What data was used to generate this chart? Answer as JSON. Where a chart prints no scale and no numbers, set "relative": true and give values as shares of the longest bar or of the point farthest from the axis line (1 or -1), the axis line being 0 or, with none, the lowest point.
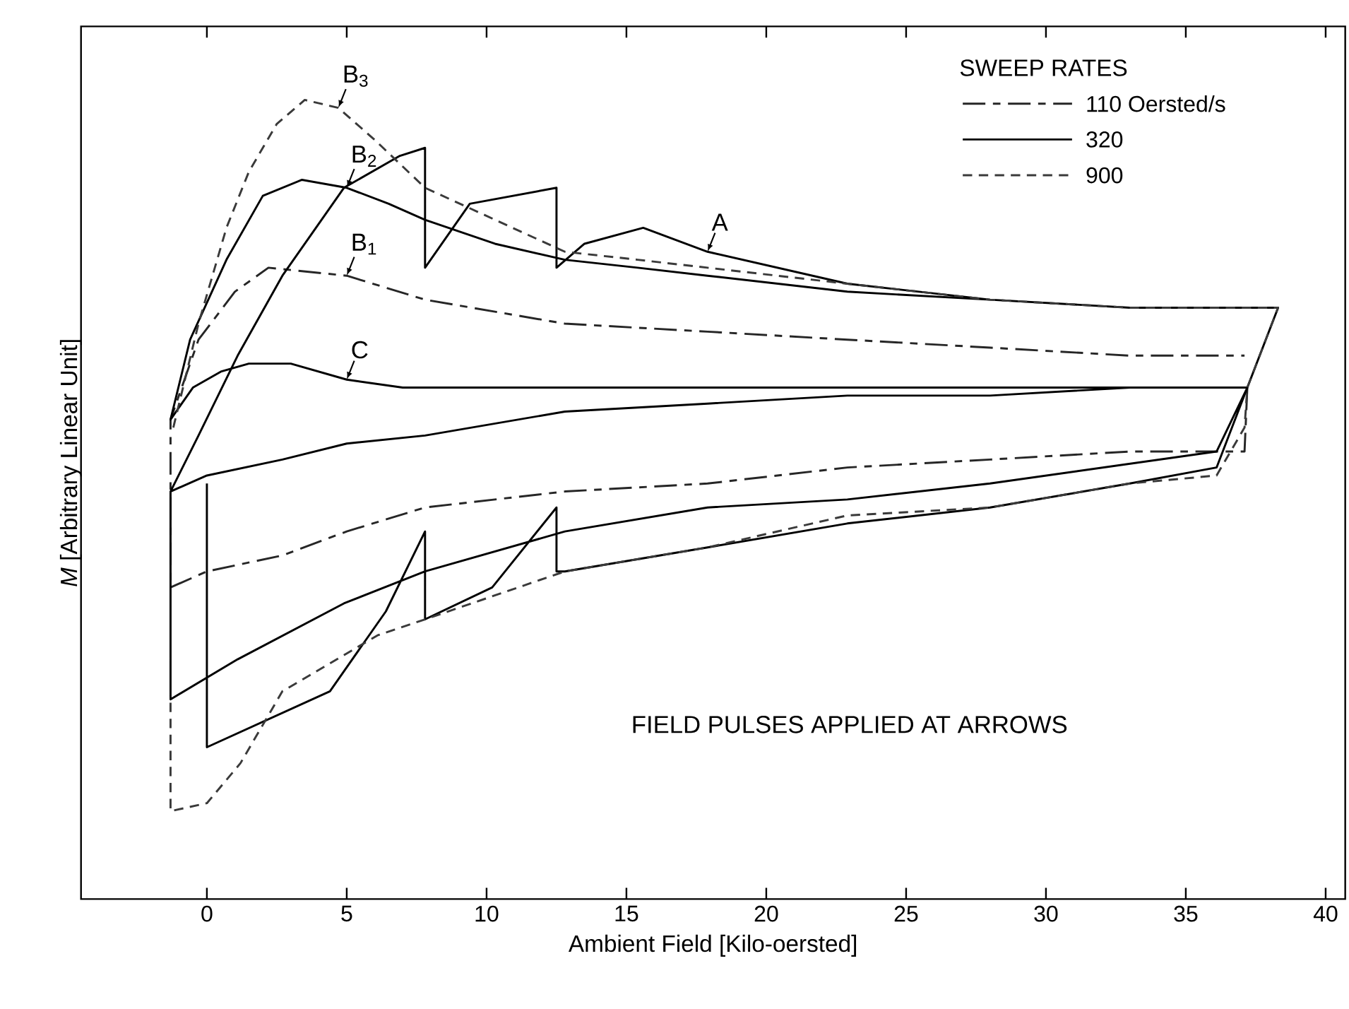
{
  "chart_data": {
    "type": "line",
    "relative": true,
    "xlabel": "Ambient Field [Kilo-oersted]",
    "ylabel": "*M* [Arbitrary Linear Unit]",
    "legend_title": "SWEEP RATES",
    "legend": "top right",
    "tick_labels": "x",
    "xlim": [
      -4.5,
      40.7
    ],
    "xticks": [
      0,
      5,
      10,
      15,
      20,
      25,
      30,
      35,
      40
    ],
    "annotations": [
      {
        "text": "B$_{3}$",
        "x": 4.7,
        "y": 0.99
      },
      {
        "text": "B$_{2}$",
        "x": 5.0,
        "y": 0.89
      },
      {
        "text": "B$_{1}$",
        "x": 5.0,
        "y": 0.78
      },
      {
        "text": "C",
        "x": 5,
        "y": 0.65
      },
      {
        "text": "A",
        "x": 17.9,
        "y": 0.81
      },
      "FIELD PULSES APPLIED AT ARROWS"
    ],
    "series": [
      {
        "name": "110 Oersted/s",
        "color": "#262626",
        "line_style": "dashdot",
        "x": [
          37.2,
          37.1,
          33.0,
          28.0,
          22.9,
          17.9,
          12.8,
          7.8,
          5.0,
          2.7,
          0,
          -1.3,
          -1.3,
          -0.3,
          1.0,
          2.2,
          5.0,
          7.8,
          12.8,
          17.9,
          22.9,
          28.0,
          33.0,
          37.1
        ],
        "values": [
          0.64,
          0.56,
          0.56,
          0.55,
          0.54,
          0.52,
          0.51,
          0.49,
          0.46,
          0.43,
          0.41,
          0.39,
          0.6,
          0.7,
          0.76,
          0.79,
          0.78,
          0.75,
          0.72,
          0.71,
          0.7,
          0.69,
          0.68,
          0.68
        ]
      },
      {
        "name": "320",
        "color": "#000000",
        "line_style": "solid",
        "x": [
          -1.3,
          0,
          2.7,
          5,
          7.8,
          12.8,
          17.9,
          22.9,
          28,
          33,
          37.2,
          30,
          20,
          15,
          10,
          7,
          5,
          3,
          1.5,
          0.5,
          -0.5,
          -1.3,
          -0.6,
          0.7,
          2.0,
          3.4,
          5.0,
          6.5,
          7.8,
          10.3,
          12.8,
          15.4,
          17.9,
          22.9,
          28,
          33,
          38.3,
          37.2,
          36.1,
          28,
          22.9,
          17.9,
          12.8,
          7.8,
          4.9,
          1.1,
          -1.3,
          -1.3,
          -0.3,
          1.1,
          2.7,
          4.9,
          6.9,
          7.8,
          7.8,
          9.4,
          12.5,
          12.5,
          13.5,
          15.6,
          17.9,
          22.9,
          28,
          33,
          38.3,
          37.2,
          36.1,
          33,
          28,
          22.9,
          17.9,
          12.8,
          12.5,
          12.5,
          10.2,
          7.8,
          7.8,
          6.4,
          4.4,
          0,
          0
        ],
        "values": [
          0.51,
          0.53,
          0.55,
          0.57,
          0.58,
          0.61,
          0.62,
          0.63,
          0.63,
          0.64,
          0.64,
          0.64,
          0.64,
          0.64,
          0.64,
          0.64,
          0.65,
          0.67,
          0.67,
          0.66,
          0.64,
          0.6,
          0.7,
          0.8,
          0.88,
          0.9,
          0.89,
          0.87,
          0.85,
          0.82,
          0.8,
          0.79,
          0.78,
          0.76,
          0.75,
          0.74,
          0.74,
          0.64,
          0.56,
          0.52,
          0.5,
          0.49,
          0.46,
          0.41,
          0.37,
          0.3,
          0.25,
          0.51,
          0.58,
          0.68,
          0.78,
          0.89,
          0.93,
          0.94,
          0.79,
          0.87,
          0.89,
          0.79,
          0.82,
          0.84,
          0.81,
          0.77,
          0.75,
          0.74,
          0.74,
          0.64,
          0.54,
          0.52,
          0.49,
          0.47,
          0.44,
          0.41,
          0.41,
          0.49,
          0.39,
          0.35,
          0.46,
          0.36,
          0.26,
          0.19,
          0.52
        ]
      },
      {
        "name": "900",
        "color": "#3a3a3a",
        "line_style": "dashed",
        "x": [
          -1.2,
          -0.3,
          0.7,
          1.5,
          2.5,
          3.5,
          4.7,
          6.0,
          7.8,
          10.3,
          12.8,
          15.4,
          17.9,
          22.9,
          28.0,
          33.0,
          38.3,
          37.2,
          37.1,
          36.1,
          33.0,
          28.0,
          22.9,
          17.9,
          12.8,
          7.8,
          6.1,
          2.7,
          1.2,
          0,
          -1.3,
          -1.3
        ],
        "values": [
          0.59,
          0.72,
          0.84,
          0.91,
          0.97,
          1.0,
          0.99,
          0.95,
          0.89,
          0.85,
          0.81,
          0.8,
          0.79,
          0.77,
          0.75,
          0.74,
          0.74,
          0.64,
          0.59,
          0.53,
          0.52,
          0.49,
          0.48,
          0.44,
          0.41,
          0.35,
          0.33,
          0.26,
          0.17,
          0.12,
          0.11,
          0.25
        ]
      }
    ]
  }
}
